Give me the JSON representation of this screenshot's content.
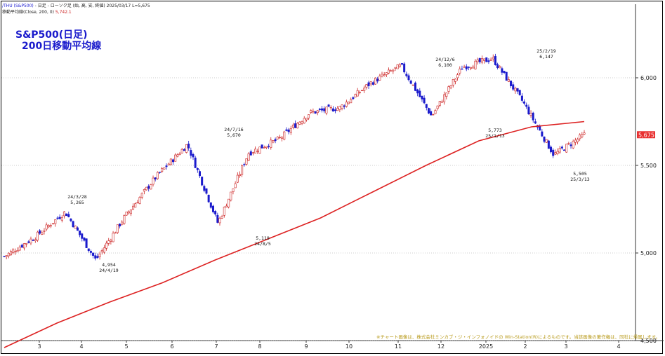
{
  "header": {
    "symbol": "/THU (S&P500)",
    "line1_rest": " - 日足 - ローソク足 (始, 高, 安, 終値)   2025/03/17  L=5,675",
    "line2_label": "移動平均線(Close, 200, 0) ",
    "line2_value": "5,742.1"
  },
  "titles": {
    "line1": "S&P500(日足)",
    "line2": "200日移動平均線"
  },
  "copyright": "※チャート画像は、株式会社ミンカブ・ジ・インフォノイドの Win-Station(R)によるものです。当該画像の著作権は、同社に帰属します。",
  "colors": {
    "up": "#cc2222",
    "down": "#1a1acc",
    "ma": "#dd2222",
    "grid": "#999999",
    "price_tag_bg": "#e83030",
    "price_tag_text": "#ffffff",
    "copyright": "#b89a1a",
    "title": "#1a1acc"
  },
  "chart_data": {
    "type": "candlestick",
    "ylim": [
      4500,
      6420
    ],
    "y_ticks": [
      4500,
      5000,
      5500,
      6000
    ],
    "y_tick_labels": [
      "4,500",
      "5,000",
      "5,500",
      "6,000"
    ],
    "month_labels": [
      "3",
      "4",
      "5",
      "6",
      "7",
      "8",
      "9",
      "10",
      "11",
      "12",
      "2025",
      "2",
      "3",
      "4"
    ],
    "last_price_label": "5,675",
    "ma_label": "200日移動平均線",
    "ma200": [
      4460,
      4600,
      4720,
      4830,
      4960,
      5080,
      5200,
      5350,
      5500,
      5640,
      5720,
      5750
    ],
    "close": [
      4980,
      5090,
      5235,
      4960,
      5220,
      5440,
      5620,
      5170,
      5570,
      5650,
      5800,
      5830,
      5970,
      6070,
      5780,
      6060,
      6110,
      5860,
      5560,
      5675
    ],
    "annotations": [
      {
        "date": "24/3/28",
        "value": "5,265",
        "kind": "high"
      },
      {
        "date": "24/4/19",
        "value": "4,954",
        "kind": "low"
      },
      {
        "date": "24/7/16",
        "value": "5,670",
        "kind": "high"
      },
      {
        "date": "24/8/5",
        "value": "5,119",
        "kind": "low"
      },
      {
        "date": "24/12/6",
        "value": "6,100",
        "kind": "high"
      },
      {
        "date": "25/1/13",
        "value": "5,773",
        "kind": "low"
      },
      {
        "date": "25/2/19",
        "value": "6,147",
        "kind": "high"
      },
      {
        "date": "25/3/13",
        "value": "5,505",
        "kind": "low"
      }
    ]
  }
}
